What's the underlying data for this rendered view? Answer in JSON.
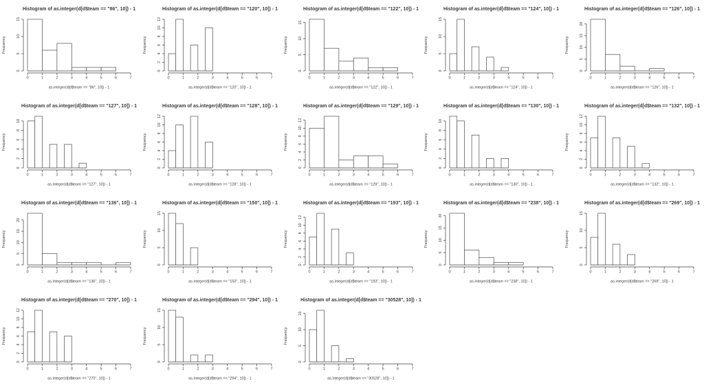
{
  "page": {
    "background": "#ffffff"
  },
  "colors": {
    "axis": "#3b3b3b",
    "text": "#3b3b3b",
    "bar_stroke": "#4a4a4a",
    "bar_fill": "#ffffff"
  },
  "chart_data": [
    {
      "type": "bar",
      "team": "86",
      "title": "Histogram of as.integer(d[d$team == \"86\", 10]) - 1",
      "xlabel": "as.integer(d[d$team == \"86\", 10]) - 1",
      "ylabel": "Frequency",
      "bin_start": 0,
      "bin_width": 1,
      "counts": [
        15,
        6,
        8,
        1,
        1,
        1
      ],
      "xticks": [
        0,
        1,
        2,
        3,
        4,
        5,
        6,
        7
      ],
      "yticks": [
        0,
        5,
        10,
        15
      ],
      "xlim": [
        0,
        7
      ],
      "grid": false,
      "legend": false
    },
    {
      "type": "bar",
      "team": "120",
      "title": "Histogram of as.integer(d[d$team == \"120\", 10]) - 1",
      "xlabel": "as.integer(d[d$team == \"120\", 10]) - 1",
      "ylabel": "Frequency",
      "bin_start": 0,
      "bin_width": 0.5,
      "counts": [
        4,
        12,
        0,
        6,
        0,
        10
      ],
      "xticks": [
        0,
        1,
        2,
        3,
        4,
        5,
        6,
        7
      ],
      "yticks": [
        0,
        2,
        4,
        6,
        8,
        10,
        12
      ],
      "xlim": [
        0,
        7
      ],
      "grid": false,
      "legend": false
    },
    {
      "type": "bar",
      "team": "122",
      "title": "Histogram of as.integer(d[d$team == \"122\", 10]) - 1",
      "xlabel": "as.integer(d[d$team == \"122\", 10]) - 1",
      "ylabel": "Frequency",
      "bin_start": 0,
      "bin_width": 1,
      "counts": [
        16,
        7,
        3,
        4,
        1,
        1
      ],
      "xticks": [
        0,
        1,
        2,
        3,
        4,
        5,
        6,
        7
      ],
      "yticks": [
        0,
        5,
        10,
        15
      ],
      "xlim": [
        0,
        7
      ],
      "grid": false,
      "legend": false
    },
    {
      "type": "bar",
      "team": "124",
      "title": "Histogram of as.integer(d[d$team == \"124\", 10]) - 1",
      "xlabel": "as.integer(d[d$team == \"124\", 10]) - 1",
      "ylabel": "Frequency",
      "bin_start": 0,
      "bin_width": 0.5,
      "counts": [
        5,
        15,
        0,
        7,
        0,
        4,
        0,
        1
      ],
      "xticks": [
        0,
        1,
        2,
        3,
        4,
        5,
        6,
        7
      ],
      "yticks": [
        0,
        5,
        10,
        15
      ],
      "xlim": [
        0,
        7
      ],
      "grid": false,
      "legend": false
    },
    {
      "type": "bar",
      "team": "126",
      "title": "Histogram of as.integer(d[d$team == \"126\", 10]) - 1",
      "xlabel": "as.integer(d[d$team == \"126\", 10]) - 1",
      "ylabel": "Frequency",
      "bin_start": 0,
      "bin_width": 1,
      "counts": [
        22,
        7,
        2,
        0,
        1
      ],
      "xticks": [
        0,
        1,
        2,
        3,
        4,
        5,
        6,
        7
      ],
      "yticks": [
        0,
        5,
        10,
        15,
        20
      ],
      "xlim": [
        0,
        7
      ],
      "grid": false,
      "legend": false
    },
    {
      "type": "bar",
      "team": "127",
      "title": "Histogram of as.integer(d[d$team == \"127\", 10]) - 1",
      "xlabel": "as.integer(d[d$team == \"127\", 10]) - 1",
      "ylabel": "Frequency",
      "bin_start": 0,
      "bin_width": 0.5,
      "counts": [
        10,
        11,
        0,
        5,
        0,
        5,
        0,
        1
      ],
      "xticks": [
        0,
        1,
        2,
        3,
        4,
        5,
        6,
        7
      ],
      "yticks": [
        0,
        2,
        4,
        6,
        8,
        10
      ],
      "xlim": [
        0,
        7
      ],
      "grid": false,
      "legend": false
    },
    {
      "type": "bar",
      "team": "128",
      "title": "Histogram of as.integer(d[d$team == \"128\", 10]) - 1",
      "xlabel": "as.integer(d[d$team == \"128\", 10]) - 1",
      "ylabel": "Frequency",
      "bin_start": 0,
      "bin_width": 0.5,
      "counts": [
        4,
        10,
        0,
        12,
        0,
        6
      ],
      "xticks": [
        0,
        1,
        2,
        3,
        4,
        5,
        6,
        7
      ],
      "yticks": [
        0,
        2,
        4,
        6,
        8,
        10,
        12
      ],
      "xlim": [
        0,
        7
      ],
      "grid": false,
      "legend": false
    },
    {
      "type": "bar",
      "team": "129",
      "title": "Histogram of as.integer(d[d$team == \"129\", 10]) - 1",
      "xlabel": "as.integer(d[d$team == \"129\", 10]) - 1",
      "ylabel": "Frequency",
      "bin_start": 0,
      "bin_width": 1,
      "counts": [
        10,
        13,
        2,
        3,
        3,
        1
      ],
      "xticks": [
        0,
        1,
        2,
        3,
        4,
        5,
        6,
        7
      ],
      "yticks": [
        0,
        2,
        4,
        6,
        8,
        10,
        12
      ],
      "xlim": [
        0,
        7
      ],
      "grid": false,
      "legend": false
    },
    {
      "type": "bar",
      "team": "130",
      "title": "Histogram of as.integer(d[d$team == \"130\", 10]) - 1",
      "xlabel": "as.integer(d[d$team == \"130\", 10]) - 1",
      "ylabel": "Frequency",
      "bin_start": 0,
      "bin_width": 0.5,
      "counts": [
        11,
        10,
        0,
        7,
        0,
        2,
        0,
        2
      ],
      "xticks": [
        0,
        1,
        2,
        3,
        4,
        5,
        6,
        7
      ],
      "yticks": [
        0,
        2,
        4,
        6,
        8,
        10
      ],
      "xlim": [
        0,
        7
      ],
      "grid": false,
      "legend": false
    },
    {
      "type": "bar",
      "team": "132",
      "title": "Histogram of as.integer(d[d$team == \"132\", 10]) - 1",
      "xlabel": "as.integer(d[d$team == \"132\", 10]) - 1",
      "ylabel": "Frequency",
      "bin_start": 0,
      "bin_width": 0.5,
      "counts": [
        7,
        12,
        0,
        7,
        0,
        5,
        0,
        1
      ],
      "xticks": [
        0,
        1,
        2,
        3,
        4,
        5,
        6,
        7
      ],
      "yticks": [
        0,
        2,
        4,
        6,
        8,
        10,
        12
      ],
      "xlim": [
        0,
        7
      ],
      "grid": false,
      "legend": false
    },
    {
      "type": "bar",
      "team": "136",
      "title": "Histogram of as.integer(d[d$team == \"136\", 10]) - 1",
      "xlabel": "as.integer(d[d$team == \"136\", 10]) - 1",
      "ylabel": "Frequency",
      "bin_start": 0,
      "bin_width": 1,
      "counts": [
        23,
        5,
        1,
        1,
        1,
        0,
        1
      ],
      "xticks": [
        0,
        1,
        2,
        3,
        4,
        5,
        6,
        7
      ],
      "yticks": [
        0,
        5,
        10,
        15,
        20
      ],
      "xlim": [
        0,
        7
      ],
      "grid": false,
      "legend": false
    },
    {
      "type": "bar",
      "team": "150",
      "title": "Histogram of as.integer(d[d$team == \"150\", 10]) - 1",
      "xlabel": "as.integer(d[d$team == \"150\", 10]) - 1",
      "ylabel": "Frequency",
      "bin_start": 0,
      "bin_width": 0.5,
      "counts": [
        15,
        12,
        0,
        5
      ],
      "xticks": [
        0,
        1,
        2,
        3,
        4,
        5,
        6,
        7
      ],
      "yticks": [
        0,
        5,
        10,
        15
      ],
      "xlim": [
        0,
        7
      ],
      "grid": false,
      "legend": false
    },
    {
      "type": "bar",
      "team": "193",
      "title": "Histogram of as.integer(d[d$team == \"193\", 10]) - 1",
      "xlabel": "as.integer(d[d$team == \"193\", 10]) - 1",
      "ylabel": "Frequency",
      "bin_start": 0,
      "bin_width": 0.5,
      "counts": [
        7,
        13,
        0,
        9,
        0,
        3
      ],
      "xticks": [
        0,
        1,
        2,
        3,
        4,
        5,
        6,
        7
      ],
      "yticks": [
        0,
        2,
        4,
        6,
        8,
        10,
        12
      ],
      "xlim": [
        0,
        7
      ],
      "grid": false,
      "legend": false
    },
    {
      "type": "bar",
      "team": "238",
      "title": "Histogram of as.integer(d[d$team == \"238\", 10]) - 1",
      "xlabel": "as.integer(d[d$team == \"238\", 10]) - 1",
      "ylabel": "Frequency",
      "bin_start": 0,
      "bin_width": 1,
      "counts": [
        21,
        6,
        3,
        1,
        1
      ],
      "xticks": [
        0,
        1,
        2,
        3,
        4,
        5,
        6,
        7
      ],
      "yticks": [
        0,
        5,
        10,
        15,
        20
      ],
      "xlim": [
        0,
        7
      ],
      "grid": false,
      "legend": false
    },
    {
      "type": "bar",
      "team": "269",
      "title": "Histogram of as.integer(d[d$team == \"269\", 10]) - 1",
      "xlabel": "as.integer(d[d$team == \"269\", 10]) - 1",
      "ylabel": "Frequency",
      "bin_start": 0,
      "bin_width": 0.5,
      "counts": [
        8,
        15,
        0,
        6,
        0,
        3
      ],
      "xticks": [
        0,
        1,
        2,
        3,
        4,
        5,
        6,
        7
      ],
      "yticks": [
        0,
        5,
        10,
        15
      ],
      "xlim": [
        0,
        7
      ],
      "grid": false,
      "legend": false
    },
    {
      "type": "bar",
      "team": "270",
      "title": "Histogram of as.integer(d[d$team == \"270\", 10]) - 1",
      "xlabel": "as.integer(d[d$team == \"270\", 10]) - 1",
      "ylabel": "Frequency",
      "bin_start": 0,
      "bin_width": 0.5,
      "counts": [
        7,
        12,
        0,
        7,
        0,
        6
      ],
      "xticks": [
        0,
        1,
        2,
        3,
        4,
        5,
        6,
        7
      ],
      "yticks": [
        0,
        2,
        4,
        6,
        8,
        10,
        12
      ],
      "xlim": [
        0,
        7
      ],
      "grid": false,
      "legend": false
    },
    {
      "type": "bar",
      "team": "294",
      "title": "Histogram of as.integer(d[d$team == \"294\", 10]) - 1",
      "xlabel": "as.integer(d[d$team == \"294\", 10]) - 1",
      "ylabel": "Frequency",
      "bin_start": 0,
      "bin_width": 0.5,
      "counts": [
        15,
        13,
        0,
        2,
        0,
        2
      ],
      "xticks": [
        0,
        1,
        2,
        3,
        4,
        5,
        6,
        7
      ],
      "yticks": [
        0,
        5,
        10,
        15
      ],
      "xlim": [
        0,
        7
      ],
      "grid": false,
      "legend": false
    },
    {
      "type": "bar",
      "team": "30528",
      "title": "Histogram of as.integer(d[d$team == \"30528\", 10]) - 1",
      "xlabel": "as.integer(d[d$team == \"30528\", 10]) - 1",
      "ylabel": "Frequency",
      "bin_start": 0,
      "bin_width": 0.5,
      "counts": [
        10,
        16,
        0,
        5,
        0,
        1
      ],
      "xticks": [
        0,
        1,
        2,
        3,
        4,
        5,
        6,
        7
      ],
      "yticks": [
        0,
        5,
        10,
        15
      ],
      "xlim": [
        0,
        7
      ],
      "grid": false,
      "legend": false
    }
  ]
}
